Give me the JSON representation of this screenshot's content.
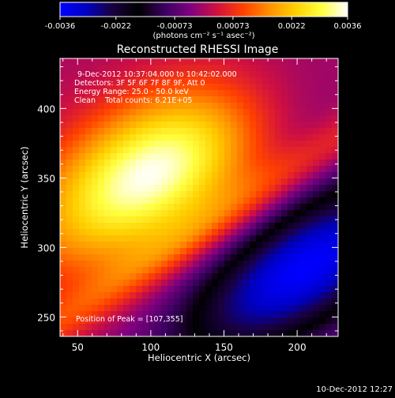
{
  "chart_data": {
    "type": "heatmap",
    "title": "Reconstructed RHESSI Image",
    "xlabel": "Heliocentric X (arcsec)",
    "ylabel": "Heliocentric Y (arcsec)",
    "xlim": [
      38,
      228
    ],
    "ylim": [
      236,
      436
    ],
    "x_ticks": [
      50,
      100,
      150,
      200
    ],
    "y_ticks": [
      250,
      300,
      350,
      400
    ],
    "annotations": {
      "time_range": "9-Dec-2012 10:37:04.000 to 10:42:02.000",
      "detectors": "Detectors: 3F 5F 6F 7F 8F 9F, Att 0",
      "energy_range": "Energy Range: 25.0 - 50.0 keV",
      "clean_counts": "Clean    Total counts: 6.21E+05",
      "peak": "Position of Peak = [107,355]"
    },
    "peak": {
      "x": 107,
      "y": 355
    },
    "colorbar": {
      "tick_labels": [
        "-0.0036",
        "-0.0022",
        "-0.00073",
        "0.00073",
        "0.0022",
        "0.0036"
      ],
      "unit_label": "(photons cm⁻² s⁻¹ asec⁻²)",
      "range": [
        -0.0036,
        0.0036
      ],
      "colors": [
        "#0000ff",
        "#0000c0",
        "#1a0040",
        "#000000",
        "#3a0060",
        "#800080",
        "#d01040",
        "#ff4000",
        "#ff9000",
        "#ffd000",
        "#ffff40",
        "#ffffff"
      ]
    },
    "features": [
      {
        "name": "main-positive-source",
        "x": 100,
        "y": 353,
        "peak_value": 0.0036
      },
      {
        "name": "negative-sidelobe",
        "x": 205,
        "y": 285,
        "min_value": -0.0036
      },
      {
        "name": "positive-ridge",
        "x": 160,
        "y": 330
      }
    ]
  },
  "footer": {
    "timestamp": "10-Dec-2012 12:27"
  }
}
